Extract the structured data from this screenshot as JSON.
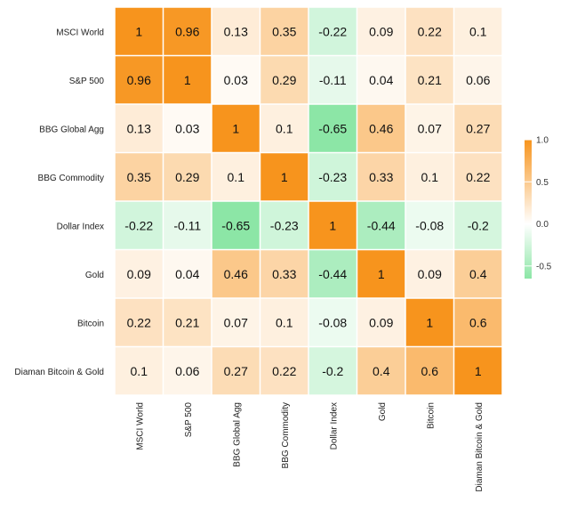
{
  "chart_data": {
    "type": "heatmap",
    "title": "",
    "row_labels": [
      "MSCI World",
      "S&P 500",
      "BBG Global Agg",
      "BBG Commodity",
      "Dollar Index",
      "Gold",
      "Bitcoin",
      "Diaman Bitcoin & Gold"
    ],
    "col_labels": [
      "MSCI World",
      "S&P 500",
      "BBG Global Agg",
      "BBG Commodity",
      "Dollar Index",
      "Gold",
      "Bitcoin",
      "Diaman Bitcoin & Gold"
    ],
    "values": [
      [
        "1",
        "0.96",
        "0.13",
        "0.35",
        "-0.22",
        "0.09",
        "0.22",
        "0.1"
      ],
      [
        "0.96",
        "1",
        "0.03",
        "0.29",
        "-0.11",
        "0.04",
        "0.21",
        "0.06"
      ],
      [
        "0.13",
        "0.03",
        "1",
        "0.1",
        "-0.65",
        "0.46",
        "0.07",
        "0.27"
      ],
      [
        "0.35",
        "0.29",
        "0.1",
        "1",
        "-0.23",
        "0.33",
        "0.1",
        "0.22"
      ],
      [
        "-0.22",
        "-0.11",
        "-0.65",
        "-0.23",
        "1",
        "-0.44",
        "-0.08",
        "-0.2"
      ],
      [
        "0.09",
        "0.04",
        "0.46",
        "0.33",
        "-0.44",
        "1",
        "0.09",
        "0.4"
      ],
      [
        "0.22",
        "0.21",
        "0.07",
        "0.1",
        "-0.08",
        "0.09",
        "1",
        "0.6"
      ],
      [
        "0.1",
        "0.06",
        "0.27",
        "0.22",
        "-0.2",
        "0.4",
        "0.6",
        "1"
      ]
    ],
    "color_scale": {
      "min": -0.65,
      "max": 1.0,
      "low_color": "#8ce6a6",
      "mid_color": "#ffffff",
      "high_color": "#f7941d"
    },
    "legend": {
      "position": "right",
      "ticks": [
        "1.0",
        "0.5",
        "0.0",
        "-0.5"
      ]
    }
  }
}
